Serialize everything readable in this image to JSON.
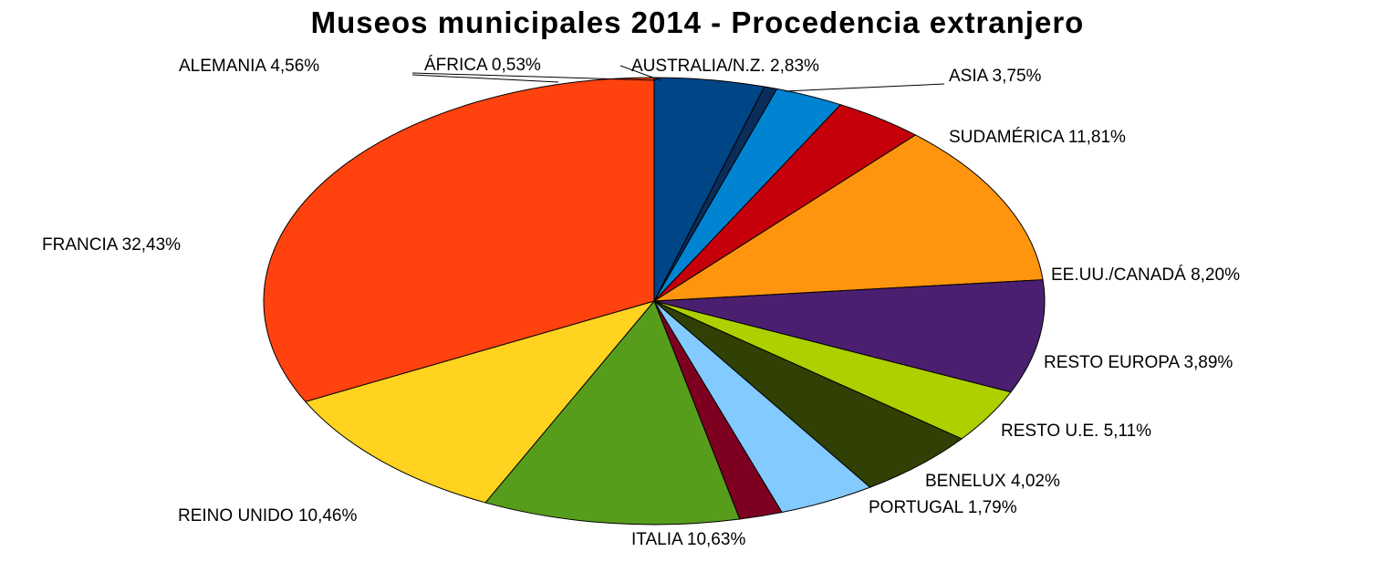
{
  "chart_data": {
    "type": "pie",
    "title": "Museos municipales 2014 - Procedencia extranjero",
    "slices": [
      {
        "label": "ALEMANIA 4,56%",
        "value": 4.56,
        "color": "#004586"
      },
      {
        "label": "ÁFRICA 0,53%",
        "value": 0.53,
        "color": "#0a2d5a"
      },
      {
        "label": "AUSTRALIA/N.Z. 2,83%",
        "value": 2.83,
        "color": "#0084d1"
      },
      {
        "label": "ASIA 3,75%",
        "value": 3.75,
        "color": "#c5000b"
      },
      {
        "label": "SUDAMÉRICA 11,81%",
        "value": 11.81,
        "color": "#ff950e"
      },
      {
        "label": "EE.UU./CANADÁ 8,20%",
        "value": 8.2,
        "color": "#4b1f6f"
      },
      {
        "label": "RESTO EUROPA 3,89%",
        "value": 3.89,
        "color": "#aecf00"
      },
      {
        "label": "RESTO U.E. 5,11%",
        "value": 5.11,
        "color": "#314004"
      },
      {
        "label": "BENELUX 4,02%",
        "value": 4.02,
        "color": "#83caff"
      },
      {
        "label": "PORTUGAL 1,79%",
        "value": 1.79,
        "color": "#7e0021"
      },
      {
        "label": "ITALIA 10,63%",
        "value": 10.63,
        "color": "#579d1c"
      },
      {
        "label": "REINO UNIDO 10,46%",
        "value": 10.46,
        "color": "#ffd320"
      },
      {
        "label": "FRANCIA 32,43%",
        "value": 32.43,
        "color": "#ff420e"
      }
    ],
    "legend": "none"
  }
}
